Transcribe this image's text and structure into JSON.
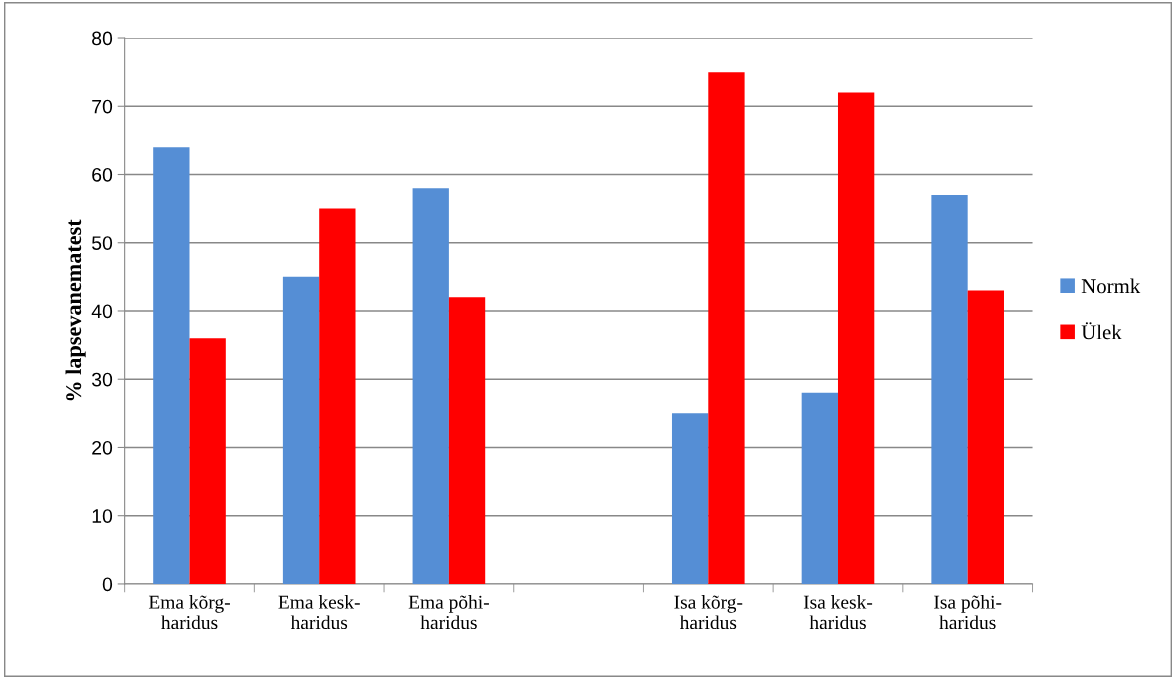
{
  "chart_data": {
    "type": "bar",
    "ylabel": "% lapsevanematest",
    "categories": [
      "Ema kõrg-\nharidus",
      "Ema kesk-\nharidus",
      "Ema põhi-\nharidus",
      null,
      "Isa kõrg-\nharidus",
      "Isa kesk-\nharidus",
      "Isa põhi-\nharidus"
    ],
    "series": [
      {
        "name": "Normk",
        "color": "#558ed5",
        "values": [
          64,
          45,
          58,
          null,
          25,
          28,
          57
        ]
      },
      {
        "name": "Ülek",
        "color": "#ff0000",
        "values": [
          36,
          55,
          42,
          null,
          75,
          72,
          43
        ]
      }
    ],
    "ylim": [
      0,
      80
    ],
    "yticks": [
      0,
      10,
      20,
      30,
      40,
      50,
      60,
      70,
      80
    ],
    "grid": "y",
    "legend": "right"
  }
}
